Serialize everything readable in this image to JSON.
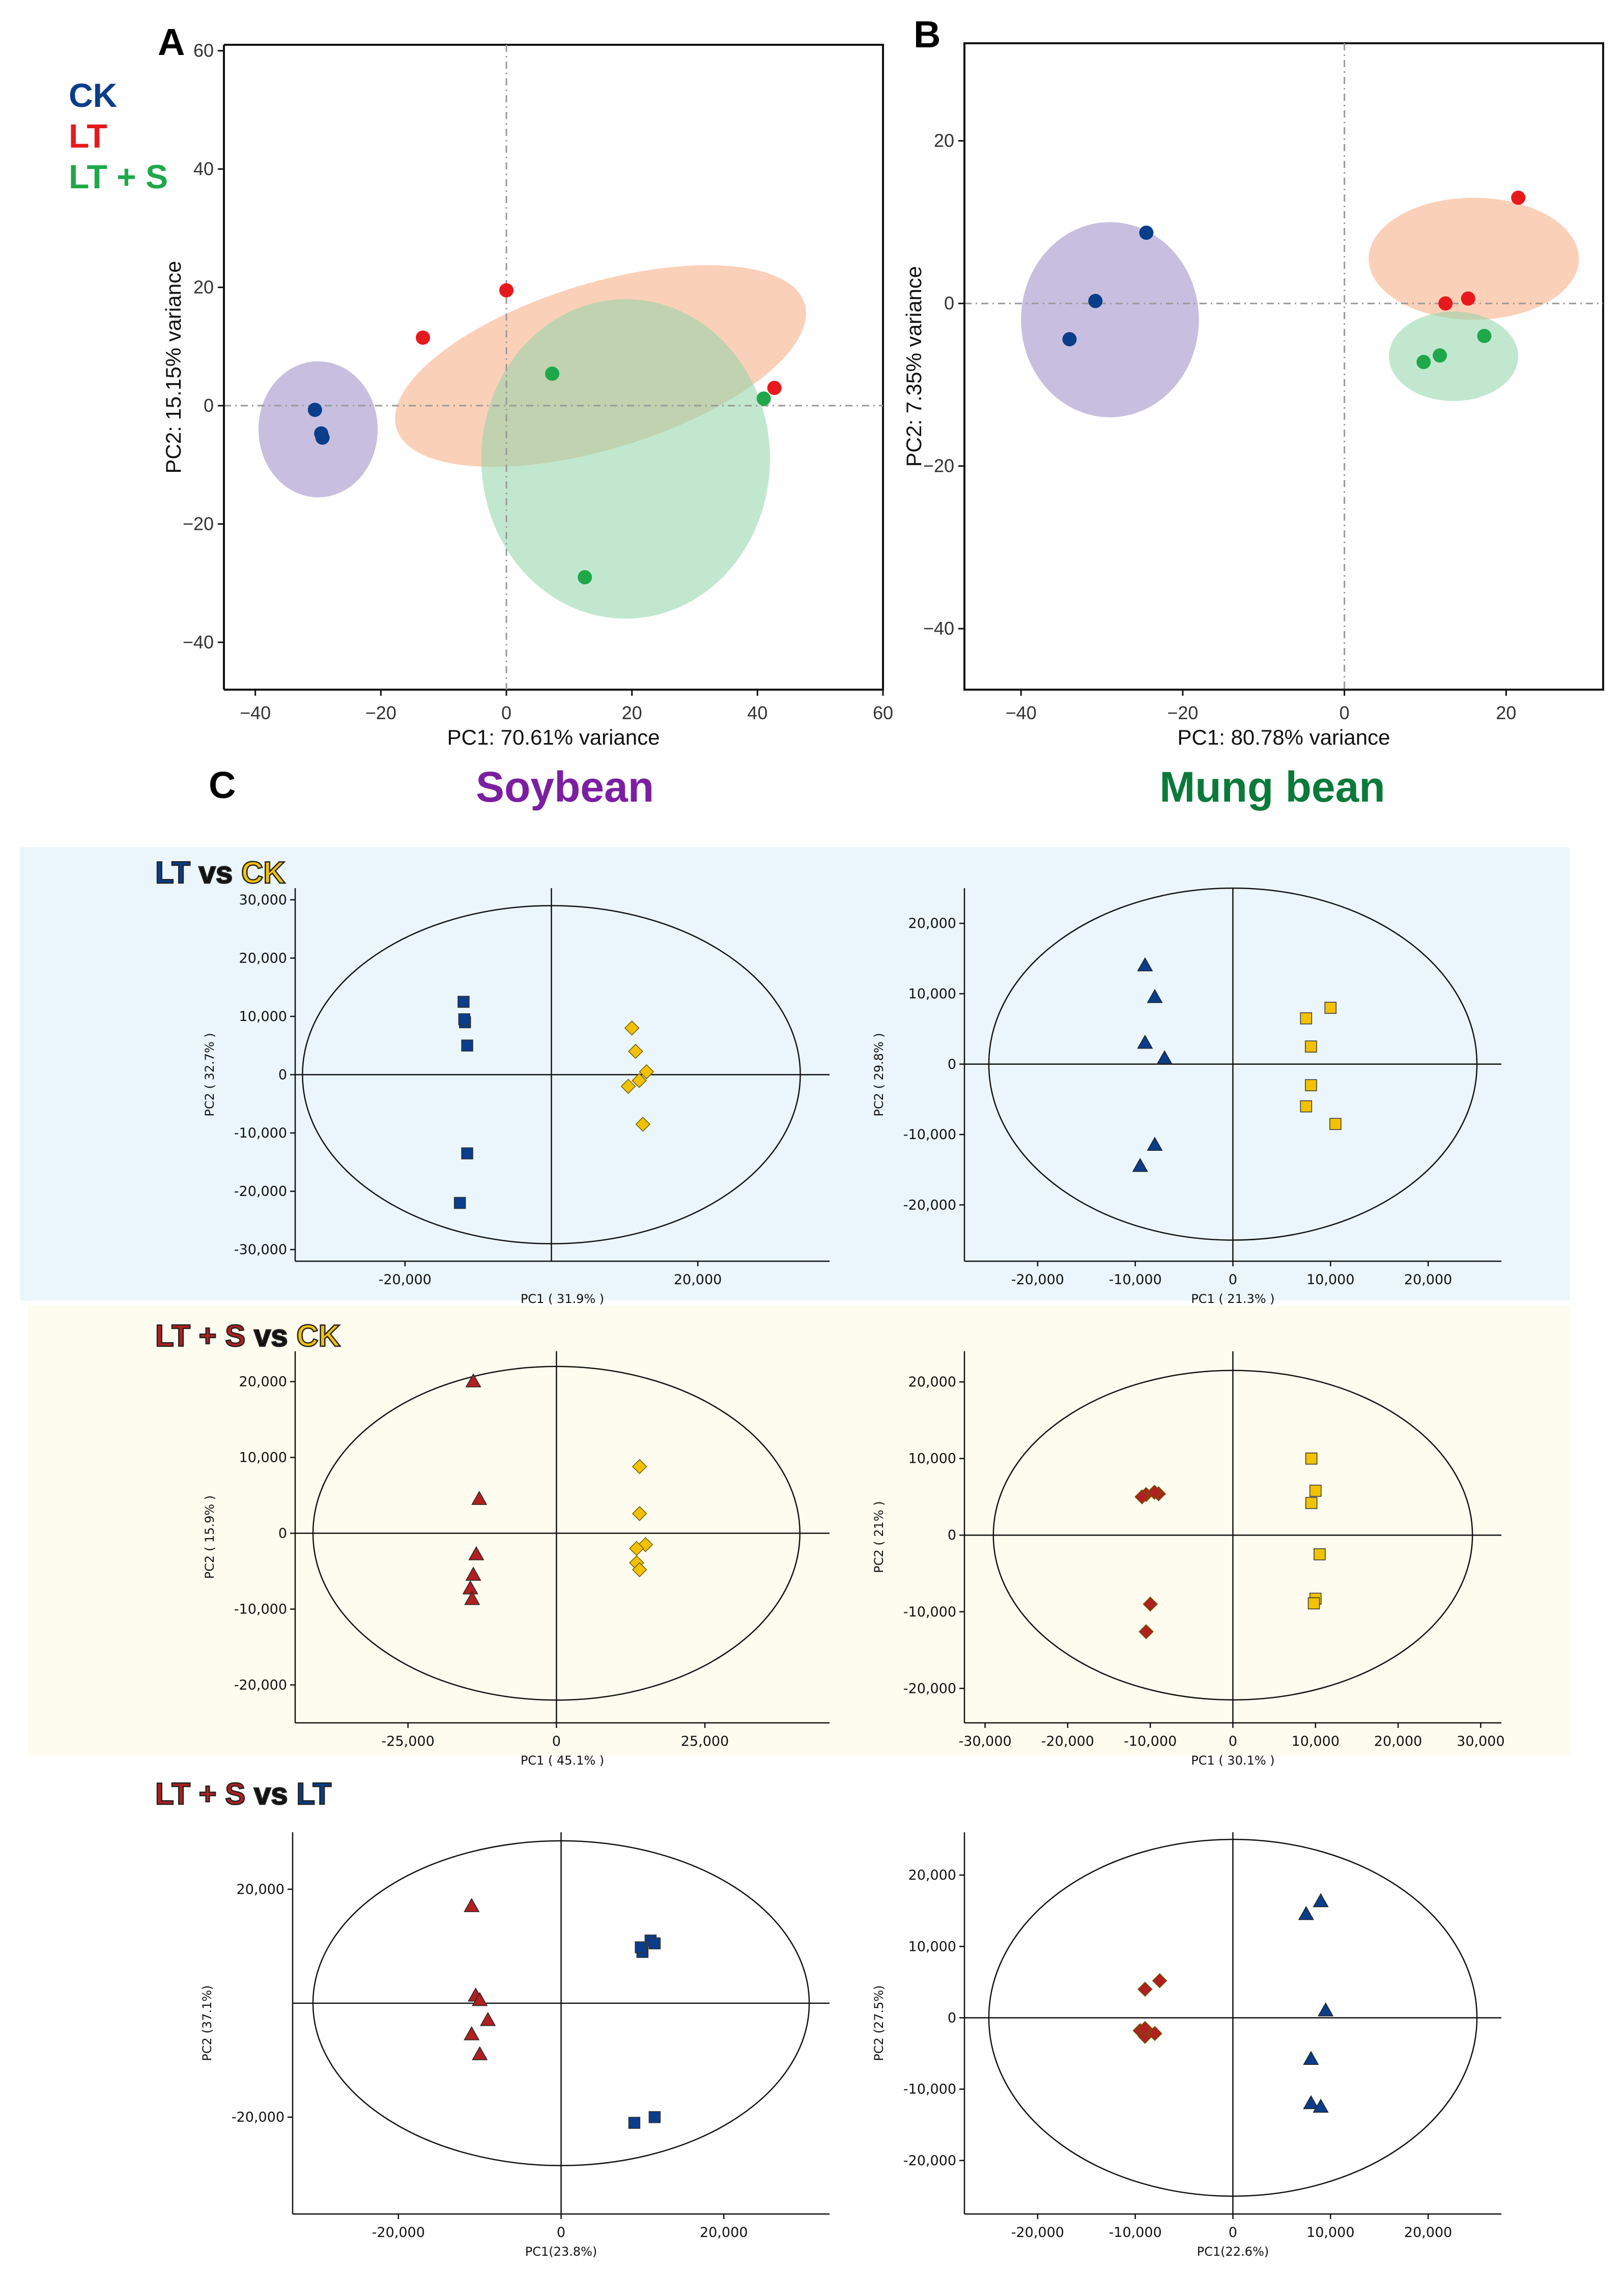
{
  "figure": {
    "panel_labels": [
      "A",
      "B",
      "C"
    ],
    "legend": [
      {
        "label": "CK",
        "color": "#0a3d8a"
      },
      {
        "label": "LT",
        "color": "#e8191c"
      },
      {
        "label": "LT + S",
        "color": "#1fa84a"
      }
    ],
    "crop_titles": [
      {
        "label": "Soybean",
        "color": "#7b1fa2"
      },
      {
        "label": "Mung bean",
        "color": "#0a7a3a"
      }
    ],
    "rows": [
      {
        "title": [
          {
            "text": "LT",
            "color": "#0a3d8a"
          },
          {
            "text": " vs ",
            "color": "#111111"
          },
          {
            "text": "CK",
            "color": "#f2c200"
          }
        ],
        "background": "#eaf6fc"
      },
      {
        "title": [
          {
            "text": "LT + S",
            "color": "#b02020"
          },
          {
            "text": " vs ",
            "color": "#111111"
          },
          {
            "text": "CK",
            "color": "#f2c200"
          }
        ],
        "background": "#fdfcef"
      },
      {
        "title": [
          {
            "text": "LT + S",
            "color": "#b02020"
          },
          {
            "text": " vs ",
            "color": "#111111"
          },
          {
            "text": "LT",
            "color": "#0a3d8a"
          }
        ],
        "background": "#ffffff"
      }
    ]
  },
  "chart_data": [
    {
      "id": "A",
      "type": "scatter",
      "title": "",
      "xlabel": "PC1: 70.61% variance",
      "ylabel": "PC2: 15.15% variance",
      "xlim": [
        -45,
        60
      ],
      "ylim": [
        -48,
        61
      ],
      "xticks": [
        -40,
        -20,
        0,
        20,
        40,
        60
      ],
      "yticks": [
        -40,
        -20,
        0,
        20,
        40,
        60
      ],
      "tick_labels": {
        "x": [
          "−40",
          "−20",
          "0",
          "20",
          "40",
          "60"
        ],
        "y": [
          "−40",
          "−20",
          "0",
          "20",
          "40",
          "60"
        ]
      },
      "frame": "open",
      "ellipses": [
        {
          "name": "CK",
          "color": "#9a8ac7",
          "center": [
            -30,
            -4
          ],
          "radii": [
            9.5,
            11.5
          ],
          "angle": 0
        },
        {
          "name": "LT",
          "color": "#f7a980",
          "center": [
            15,
            6.7
          ],
          "radii": [
            34,
            14
          ],
          "angle": -17
        },
        {
          "name": "LT + S",
          "color": "#8fd4a8",
          "center": [
            19,
            -9
          ],
          "radii": [
            23,
            27
          ],
          "angle": 0
        }
      ],
      "series": [
        {
          "name": "CK",
          "color": "#0a3d8a",
          "points": [
            [
              -30.5,
              -0.7
            ],
            [
              -29.5,
              -4.7
            ],
            [
              -29.3,
              -5.4
            ]
          ]
        },
        {
          "name": "LT",
          "color": "#e8191c",
          "points": [
            [
              -13.3,
              11.5
            ],
            [
              0,
              19.5
            ],
            [
              42.7,
              3
            ]
          ]
        },
        {
          "name": "LT + S",
          "color": "#1fa84a",
          "points": [
            [
              7.3,
              5.4
            ],
            [
              41,
              1.2
            ],
            [
              12.5,
              -29
            ]
          ]
        }
      ]
    },
    {
      "id": "B",
      "type": "scatter",
      "title": "",
      "xlabel": "PC1: 80.78% variance",
      "ylabel": "PC2: 7.35% variance",
      "xlim": [
        -47,
        32
      ],
      "ylim": [
        -47.5,
        32
      ],
      "xticks": [
        -40,
        -20,
        0,
        20
      ],
      "yticks": [
        -40,
        -20,
        0,
        20
      ],
      "tick_labels": {
        "x": [
          "−40",
          "−20",
          "0",
          "20"
        ],
        "y": [
          "−40",
          "−20",
          "0",
          "20"
        ]
      },
      "frame": "box",
      "ellipses": [
        {
          "name": "CK",
          "color": "#9a8ac7",
          "center": [
            -29,
            -2
          ],
          "radii": [
            11,
            12
          ],
          "angle": 0
        },
        {
          "name": "LT",
          "color": "#f7a980",
          "center": [
            16,
            5.5
          ],
          "radii": [
            13,
            7.5
          ],
          "angle": 0
        },
        {
          "name": "LT + S",
          "color": "#8fd4a8",
          "center": [
            13.5,
            -6.5
          ],
          "radii": [
            8,
            5.5
          ],
          "angle": 0
        }
      ],
      "series": [
        {
          "name": "CK",
          "color": "#0a3d8a",
          "points": [
            [
              -24.5,
              8.7
            ],
            [
              -30.8,
              0.3
            ],
            [
              -34,
              -4.4
            ]
          ]
        },
        {
          "name": "LT",
          "color": "#e8191c",
          "points": [
            [
              21.5,
              13
            ],
            [
              12.5,
              0
            ],
            [
              15.3,
              0.6
            ]
          ]
        },
        {
          "name": "LT + S",
          "color": "#1fa84a",
          "points": [
            [
              17.3,
              -4
            ],
            [
              11.8,
              -6.4
            ],
            [
              9.8,
              -7.2
            ]
          ]
        }
      ]
    },
    {
      "id": "C-soybean-LT-vs-CK",
      "type": "scatter",
      "style": "pls",
      "xlabel": "PC1 ( 31.9% )",
      "ylabel": "PC2 ( 32.7% )",
      "xlim": [
        -35000,
        38000
      ],
      "ylim": [
        -32000,
        32000
      ],
      "xticks": [
        -20000,
        20000
      ],
      "yticks": [
        -30000,
        -20000,
        -10000,
        0,
        10000,
        20000,
        30000
      ],
      "tick_labels": {
        "x": [
          "-20,000",
          "20,000"
        ],
        "y": [
          "-30,000",
          "-20,000",
          "-10,000",
          "0",
          "10,000",
          "20,000",
          "30,000"
        ]
      },
      "ellipse": {
        "radii": [
          34000,
          29000
        ]
      },
      "series": [
        {
          "name": "LT",
          "marker": "square",
          "color": "#0a3d8a",
          "points": [
            [
              -12000,
              12500
            ],
            [
              -11800,
              9000
            ],
            [
              -11500,
              5000
            ],
            [
              -11500,
              -13500
            ],
            [
              -12500,
              -22000
            ],
            [
              -11900,
              9500
            ]
          ]
        },
        {
          "name": "CK",
          "marker": "diamond",
          "color": "#f2c200",
          "points": [
            [
              11000,
              8000
            ],
            [
              11500,
              4000
            ],
            [
              13000,
              500
            ],
            [
              12000,
              -1000
            ],
            [
              10500,
              -2000
            ],
            [
              12500,
              -8500
            ]
          ]
        }
      ]
    },
    {
      "id": "C-mungbean-LT-vs-CK",
      "type": "scatter",
      "style": "pls",
      "xlabel": "PC1 ( 21.3% )",
      "ylabel": "PC2 ( 29.8% )",
      "xlim": [
        -27500,
        27500
      ],
      "ylim": [
        -28000,
        25000
      ],
      "xticks": [
        -20000,
        -10000,
        0,
        10000,
        20000
      ],
      "yticks": [
        -20000,
        -10000,
        0,
        10000,
        20000
      ],
      "tick_labels": {
        "x": [
          "-20,000",
          "-10,000",
          "0",
          "10,000",
          "20,000"
        ],
        "y": [
          "-20,000",
          "-10,000",
          "0",
          "10,000",
          "20,000"
        ]
      },
      "ellipse": {
        "radii": [
          25000,
          25000
        ]
      },
      "series": [
        {
          "name": "LT",
          "marker": "triangle",
          "color": "#0a3d8a",
          "points": [
            [
              -9000,
              14000
            ],
            [
              -8000,
              9500
            ],
            [
              -9000,
              3000
            ],
            [
              -7000,
              800
            ],
            [
              -8000,
              -11500
            ],
            [
              -9500,
              -14500
            ]
          ]
        },
        {
          "name": "CK",
          "marker": "square",
          "color": "#f2c200",
          "points": [
            [
              10000,
              8000
            ],
            [
              7500,
              6500
            ],
            [
              8000,
              2500
            ],
            [
              8000,
              -3000
            ],
            [
              7500,
              -6000
            ],
            [
              10500,
              -8500
            ]
          ]
        }
      ]
    },
    {
      "id": "C-soybean-LTS-vs-CK",
      "type": "scatter",
      "style": "pls",
      "xlabel": "PC1 ( 45.1% )",
      "ylabel": "PC2 ( 15.9% )",
      "xlim": [
        -44000,
        46000
      ],
      "ylim": [
        -25000,
        24000
      ],
      "xticks": [
        -25000,
        0,
        25000
      ],
      "yticks": [
        -20000,
        -10000,
        0,
        10000,
        20000
      ],
      "tick_labels": {
        "x": [
          "-25,000",
          "0",
          "25,000"
        ],
        "y": [
          "-20,000",
          "-10,000",
          "0",
          "10,000",
          "20,000"
        ]
      },
      "ellipse": {
        "radii": [
          41000,
          22000
        ]
      },
      "series": [
        {
          "name": "LT + S",
          "marker": "triangle",
          "color": "#b02020",
          "points": [
            [
              -14000,
              20000
            ],
            [
              -13000,
              4500
            ],
            [
              -13500,
              -2800
            ],
            [
              -14000,
              -5500
            ],
            [
              -14500,
              -7300
            ],
            [
              -14200,
              -8700
            ]
          ]
        },
        {
          "name": "CK",
          "marker": "diamond",
          "color": "#f2c200",
          "points": [
            [
              14000,
              8800
            ],
            [
              14000,
              2600
            ],
            [
              15000,
              -1500
            ],
            [
              13500,
              -2000
            ],
            [
              13500,
              -3900
            ],
            [
              14000,
              -4800
            ]
          ]
        }
      ]
    },
    {
      "id": "C-mungbean-LTS-vs-CK",
      "type": "scatter",
      "style": "pls",
      "xlabel": "PC1 ( 30.1% )",
      "ylabel": "PC2 ( 21% )",
      "xlim": [
        -32500,
        32500
      ],
      "ylim": [
        -24500,
        24000
      ],
      "xticks": [
        -30000,
        -20000,
        -10000,
        0,
        10000,
        20000,
        30000
      ],
      "yticks": [
        -20000,
        -10000,
        0,
        10000,
        20000
      ],
      "tick_labels": {
        "x": [
          "-30,000",
          "-20,000",
          "-10,000",
          "0",
          "10,000",
          "20,000",
          "30,000"
        ],
        "y": [
          "-20,000",
          "-10,000",
          "0",
          "10,000",
          "20,000"
        ]
      },
      "ellipse": {
        "radii": [
          29000,
          21500
        ]
      },
      "series": [
        {
          "name": "LT + S",
          "marker": "diamond",
          "color": "#b02020",
          "points": [
            [
              -10500,
              5300
            ],
            [
              -11000,
              5000
            ],
            [
              -9000,
              5400
            ],
            [
              -9500,
              5600
            ],
            [
              -10000,
              -9000
            ],
            [
              -10500,
              -12600
            ]
          ]
        },
        {
          "name": "CK",
          "marker": "square",
          "color": "#f2c200",
          "points": [
            [
              9500,
              10000
            ],
            [
              10000,
              5800
            ],
            [
              9500,
              4200
            ],
            [
              10500,
              -2500
            ],
            [
              10000,
              -8300
            ],
            [
              9800,
              -8900
            ]
          ]
        }
      ]
    },
    {
      "id": "C-soybean-LTS-vs-LT",
      "type": "scatter",
      "style": "pls",
      "xlabel": "PC1(23.8%)",
      "ylabel": "PC2 (37.1%)",
      "xlim": [
        -33000,
        33000
      ],
      "ylim": [
        -37000,
        30000
      ],
      "xticks": [
        -20000,
        0,
        20000
      ],
      "yticks": [
        -20000,
        20000
      ],
      "tick_labels": {
        "x": [
          "-20,000",
          "0",
          "20,000"
        ],
        "y": [
          "-20,000",
          "20,000"
        ]
      },
      "ellipse": {
        "radii": [
          30500,
          28500
        ]
      },
      "series": [
        {
          "name": "LT + S",
          "marker": "triangle",
          "color": "#b02020",
          "points": [
            [
              -11000,
              17000
            ],
            [
              -10500,
              1300
            ],
            [
              -10000,
              500
            ],
            [
              -9000,
              -3000
            ],
            [
              -11000,
              -5500
            ],
            [
              -10000,
              -9000
            ]
          ]
        },
        {
          "name": "LT",
          "marker": "square",
          "color": "#0a3d8a",
          "points": [
            [
              10000,
              9000
            ],
            [
              11000,
              11000
            ],
            [
              11500,
              10500
            ],
            [
              9000,
              -21000
            ],
            [
              11500,
              -20000
            ],
            [
              9800,
              9800
            ]
          ]
        }
      ]
    },
    {
      "id": "C-mungbean-LTS-vs-LT",
      "type": "scatter",
      "style": "pls",
      "xlabel": "PC1(22.6%)",
      "ylabel": "PC2 (27.5%)",
      "xlim": [
        -27500,
        27500
      ],
      "ylim": [
        -27500,
        26000
      ],
      "xticks": [
        -20000,
        -10000,
        0,
        10000,
        20000
      ],
      "yticks": [
        -20000,
        -10000,
        0,
        10000,
        20000
      ],
      "tick_labels": {
        "x": [
          "-20,000",
          "-10,000",
          "0",
          "10,000",
          "20,000"
        ],
        "y": [
          "-20,000",
          "-10,000",
          "0",
          "10,000",
          "20,000"
        ]
      },
      "ellipse": {
        "radii": [
          25000,
          25000
        ]
      },
      "series": [
        {
          "name": "LT + S",
          "marker": "diamond",
          "color": "#b02020",
          "points": [
            [
              -9000,
              4000
            ],
            [
              -7500,
              5200
            ],
            [
              -9500,
              -1800
            ],
            [
              -9000,
              -2600
            ],
            [
              -8000,
              -2200
            ],
            [
              -9000,
              -1500
            ]
          ]
        },
        {
          "name": "LT",
          "marker": "triangle",
          "color": "#0a3d8a",
          "points": [
            [
              7500,
              14500
            ],
            [
              9000,
              16300
            ],
            [
              9500,
              1000
            ],
            [
              8000,
              -5800
            ],
            [
              8000,
              -12000
            ],
            [
              9000,
              -12500
            ]
          ]
        }
      ]
    }
  ]
}
